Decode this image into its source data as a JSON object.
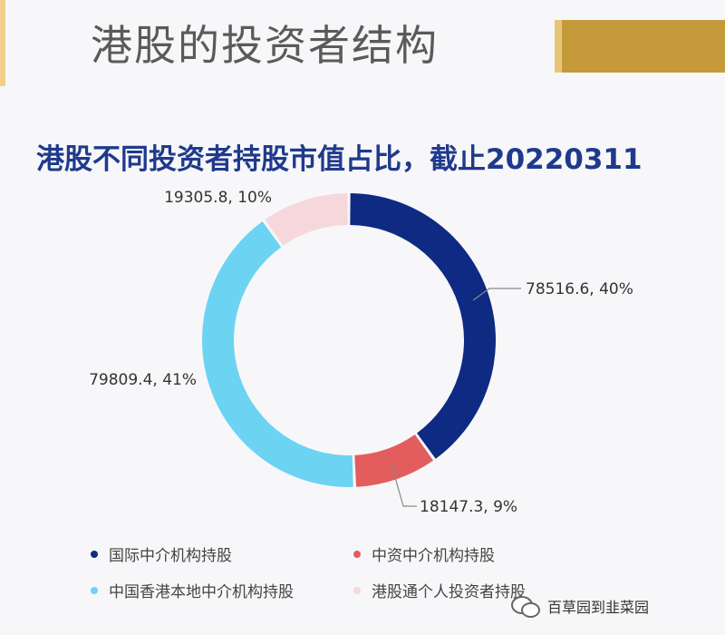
{
  "slide_title": "港股的投资者结构",
  "watermark": {
    "text": "百草园到韭菜园",
    "icon": "wechat-icon"
  },
  "chart_data": {
    "type": "pie",
    "style": "donut",
    "title": "港股不同投资者持股市值占比，截止20220311",
    "series": [
      {
        "name": "国际中介机构持股",
        "value": 78516.6,
        "percent": 40,
        "label": "78516.6, 40%",
        "color": "#0e2a82"
      },
      {
        "name": "中资中介机构持股",
        "value": 18147.3,
        "percent": 9,
        "label": "18147.3, 9%",
        "color": "#e35d5f"
      },
      {
        "name": "中国香港本地中介机构持股",
        "value": 79809.4,
        "percent": 41,
        "label": "79809.4, 41%",
        "color": "#6cd3f3"
      },
      {
        "name": "港股通个人投资者持股",
        "value": 19305.8,
        "percent": 10,
        "label": "19305.8, 10%",
        "color": "#f6d8dc"
      }
    ],
    "legend_position": "bottom"
  }
}
